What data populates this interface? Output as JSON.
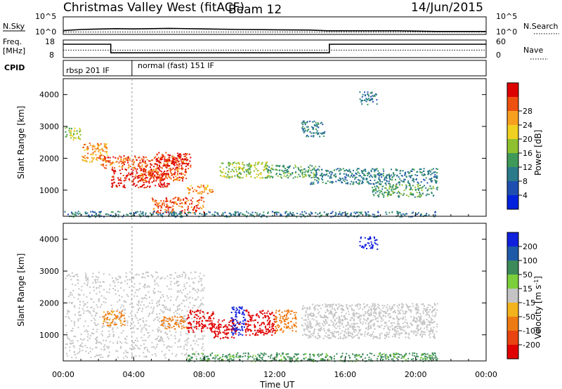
{
  "header": {
    "title": "Christmas Valley West (fitACF)",
    "beam": "Beam 12",
    "date": "14/Jun/2015"
  },
  "panels": {
    "noise": {
      "left_label": "N.Sky",
      "right_label": "N.Search",
      "left_ticks": [
        "10^5",
        "10^0"
      ],
      "right_ticks": [
        "10^5",
        "10^0"
      ]
    },
    "freq": {
      "left_label_line1": "Freq.",
      "left_label_line2": "[MHz]",
      "right_label": "Nave",
      "left_ticks": [
        "18",
        "8"
      ],
      "right_ticks": [
        "60",
        "0"
      ]
    },
    "cpid": {
      "label": "CPID",
      "segments": [
        "rbsp 201 IF",
        "normal (fast) 151 IF"
      ],
      "boundary_hours": [
        0,
        3.9
      ]
    }
  },
  "colorbars": {
    "power": {
      "label": "Power [dB]",
      "ticks": [
        "4",
        "8",
        "12",
        "16",
        "20",
        "24",
        "28"
      ],
      "colors": [
        "#0022dd",
        "#1e4fb0",
        "#2a7a8a",
        "#3f9a5a",
        "#8fc02f",
        "#f0d020",
        "#f7a020",
        "#ee5010",
        "#dd0000"
      ]
    },
    "velocity": {
      "label_prefix": "Velocity [m s",
      "label_exp": "-1",
      "label_suffix": "]",
      "ticks": [
        "200",
        "100",
        "50",
        "15",
        "-15",
        "-50",
        "-100",
        "-200"
      ],
      "colors": [
        "#1020dd",
        "#1e5aa8",
        "#3d8a5a",
        "#7ccf3c",
        "#c4c4c4",
        "#f2b31c",
        "#ee7a12",
        "#e84310",
        "#e00000"
      ]
    }
  },
  "chart_data": [
    {
      "type": "line",
      "panel": "noise",
      "series": [
        {
          "name": "N.Sky",
          "x": [
            0,
            1,
            3,
            4,
            6,
            8,
            10,
            12,
            14,
            15,
            17,
            19,
            21.2,
            22,
            24
          ],
          "y_log10": [
            0.6,
            1.0,
            1.3,
            1.2,
            1.4,
            1.2,
            1.0,
            0.9,
            0.8,
            0.55,
            0.55,
            0.55,
            0.3,
            0.3,
            0.3
          ]
        },
        {
          "name": "N.Search",
          "x": [
            0,
            24
          ],
          "y_log10": [
            0.1,
            0.1
          ]
        }
      ],
      "xlim": [
        0,
        24
      ]
    },
    {
      "type": "line",
      "panel": "freq",
      "series": [
        {
          "name": "Freq.",
          "x": [
            0,
            2.7,
            2.7,
            15.1,
            15.1,
            24
          ],
          "y": [
            16.5,
            16.5,
            10.4,
            10.4,
            16.5,
            16.5
          ]
        },
        {
          "name": "Nave",
          "x": [
            0,
            24
          ],
          "y": [
            26,
            26
          ]
        }
      ],
      "ylim_left": [
        8,
        18
      ],
      "ylim_right": [
        0,
        60
      ]
    },
    {
      "type": "heatmap",
      "panel": "power",
      "xlabel": "",
      "ylabel": "Slant Range [km]",
      "xlim": [
        0,
        24
      ],
      "ylim": [
        180,
        4500
      ],
      "y_ticks": [
        1000,
        2000,
        3000,
        4000
      ],
      "regions": [
        {
          "x": [
            0.1,
            1.0
          ],
          "y": [
            2600,
            3000
          ],
          "level": 4
        },
        {
          "x": [
            1.0,
            2.5
          ],
          "y": [
            1900,
            2500
          ],
          "level": 6
        },
        {
          "x": [
            2.0,
            4.0
          ],
          "y": [
            1700,
            2100
          ],
          "level": 7
        },
        {
          "x": [
            2.7,
            6.0
          ],
          "y": [
            1100,
            1700
          ],
          "level": 8
        },
        {
          "x": [
            4.0,
            7.0
          ],
          "y": [
            1300,
            2100
          ],
          "level": 7
        },
        {
          "x": [
            5.2,
            7.2
          ],
          "y": [
            1700,
            2200
          ],
          "level": 8
        },
        {
          "x": [
            5.0,
            8.0
          ],
          "y": [
            300,
            800
          ],
          "level": 7
        },
        {
          "x": [
            7.0,
            8.5
          ],
          "y": [
            900,
            1200
          ],
          "level": 6
        },
        {
          "x": [
            8.8,
            11.8
          ],
          "y": [
            1400,
            1900
          ],
          "level": 4
        },
        {
          "x": [
            11.5,
            14.5
          ],
          "y": [
            1400,
            1800
          ],
          "level": 3
        },
        {
          "x": [
            13.5,
            14.8
          ],
          "y": [
            2700,
            3200
          ],
          "level": 2
        },
        {
          "x": [
            14.0,
            21.2
          ],
          "y": [
            1200,
            1700
          ],
          "level": 2
        },
        {
          "x": [
            17.5,
            21.2
          ],
          "y": [
            800,
            1200
          ],
          "level": 3
        },
        {
          "x": [
            16.8,
            17.8
          ],
          "y": [
            3700,
            4100
          ],
          "level": 2
        },
        {
          "x": [
            0.0,
            21.2
          ],
          "y": [
            180,
            350
          ],
          "level": 2
        }
      ]
    },
    {
      "type": "heatmap",
      "panel": "velocity",
      "xlabel": "Time UT",
      "ylabel": "Slant Range [km]",
      "xlim": [
        0,
        24
      ],
      "ylim": [
        180,
        4500
      ],
      "y_ticks": [
        1000,
        2000,
        3000,
        4000
      ],
      "x_ticks": [
        "00:00",
        "04:00",
        "08:00",
        "12:00",
        "16:00",
        "20:00",
        "00:00"
      ],
      "regions": [
        {
          "x": [
            0.1,
            8.0
          ],
          "y": [
            300,
            3000
          ],
          "vel": 0
        },
        {
          "x": [
            2.2,
            3.5
          ],
          "y": [
            1300,
            1800
          ],
          "vel": -40
        },
        {
          "x": [
            5.5,
            7.0
          ],
          "y": [
            1200,
            1600
          ],
          "vel": -50
        },
        {
          "x": [
            7.0,
            8.5
          ],
          "y": [
            1100,
            1800
          ],
          "vel": -300
        },
        {
          "x": [
            8.5,
            10.0
          ],
          "y": [
            900,
            1500
          ],
          "vel": -180
        },
        {
          "x": [
            9.5,
            10.3
          ],
          "y": [
            1000,
            1900
          ],
          "vel": 250
        },
        {
          "x": [
            10.3,
            12.0
          ],
          "y": [
            1000,
            1800
          ],
          "vel": -180
        },
        {
          "x": [
            12.0,
            13.2
          ],
          "y": [
            1100,
            1800
          ],
          "vel": -60
        },
        {
          "x": [
            13.5,
            21.2
          ],
          "y": [
            900,
            2000
          ],
          "vel": 0
        },
        {
          "x": [
            7.0,
            21.2
          ],
          "y": [
            180,
            450
          ],
          "vel": 40
        },
        {
          "x": [
            16.8,
            17.8
          ],
          "y": [
            3700,
            4100
          ],
          "vel": 220
        }
      ]
    }
  ]
}
